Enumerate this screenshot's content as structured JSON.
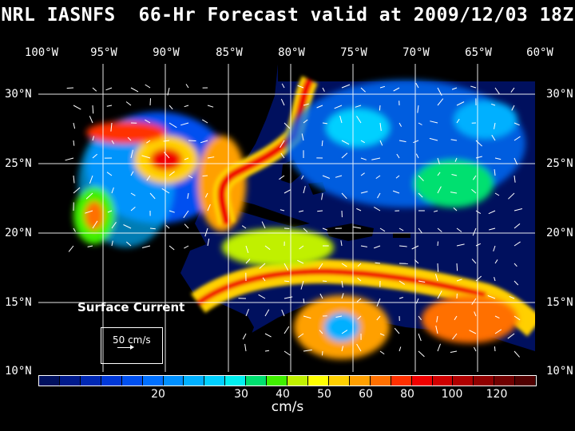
{
  "title": "NRL IASNFS  66-Hr Forecast valid at 2009/12/03 18Z",
  "lon_labels": [
    "100°W",
    "95°W",
    "90°W",
    "85°W",
    "80°W",
    "75°W",
    "70°W",
    "65°W",
    "60°W"
  ],
  "lat_labels": [
    "30°N",
    "25°N",
    "20°N",
    "15°N",
    "10°N"
  ],
  "legend": {
    "title": "Surface Current",
    "reference_vector": "50 cm/s"
  },
  "colorbar": {
    "colors": [
      "#00105e",
      "#001a8c",
      "#0028b4",
      "#0038d8",
      "#0050f0",
      "#0070ff",
      "#0090ff",
      "#00b0ff",
      "#00d0ff",
      "#00f0f0",
      "#00e070",
      "#40f000",
      "#c0f000",
      "#ffff00",
      "#ffd000",
      "#ffa000",
      "#ff7000",
      "#ff3000",
      "#f00000",
      "#d00000",
      "#b00000",
      "#900000",
      "#700000",
      "#500000"
    ],
    "tick_labels": [
      "20",
      "30",
      "40",
      "50",
      "60",
      "80",
      "100",
      "120"
    ],
    "unit": "cm/s"
  }
}
